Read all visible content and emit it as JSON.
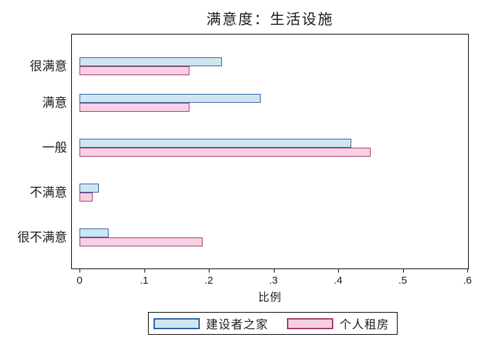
{
  "figure": {
    "background_color": "#ffffff",
    "axis_color": "#000000",
    "text_color": "#1a1a1a"
  },
  "chart_data": {
    "type": "bar",
    "orientation": "horizontal",
    "title": "满意度：生活设施",
    "xlabel": "比例",
    "xlim": [
      0,
      0.6
    ],
    "grid": false,
    "legend_position": "bottom",
    "xticks": [
      {
        "value": 0.0,
        "label": "0"
      },
      {
        "value": 0.1,
        "label": ".1"
      },
      {
        "value": 0.2,
        "label": ".2"
      },
      {
        "value": 0.3,
        "label": ".3"
      },
      {
        "value": 0.4,
        "label": ".4"
      },
      {
        "value": 0.5,
        "label": ".5"
      },
      {
        "value": 0.6,
        "label": ".6"
      }
    ],
    "categories": [
      "很满意",
      "满意",
      "一般",
      "不满意",
      "很不满意"
    ],
    "series": [
      {
        "name": "建设者之家",
        "values": [
          0.22,
          0.28,
          0.42,
          0.03,
          0.045
        ],
        "fill_color": "#cde6ef",
        "line_color": "#2e5fa3"
      },
      {
        "name": "个人租房",
        "values": [
          0.17,
          0.17,
          0.45,
          0.02,
          0.19
        ],
        "fill_color": "#f7d0e3",
        "line_color": "#a53a6a"
      }
    ]
  }
}
